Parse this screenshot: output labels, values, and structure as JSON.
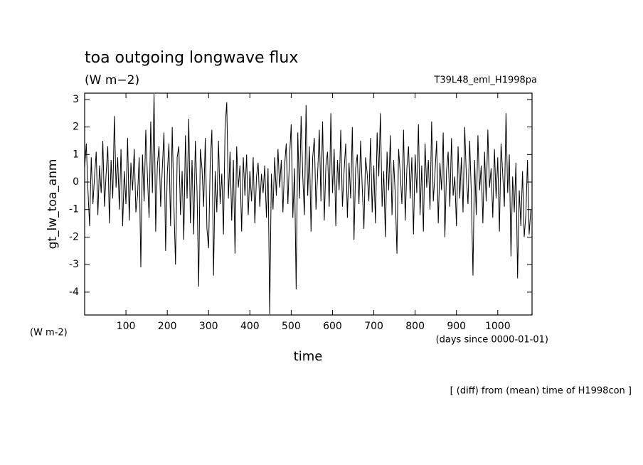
{
  "chart_data": {
    "type": "line",
    "title": "toa outgoing longwave flux",
    "subtitle": "(W m−2)",
    "annotation": "T39L48_eml_H1998pa",
    "y_label": "gt_lw_toa_anm",
    "y_unit": "(W m-2)",
    "x_unit": "(days since 0000-01-01)",
    "x_label": "time",
    "footnote": "[ (diff) from (mean) time of H1998con ]",
    "xlim": [
      0,
      1083
    ],
    "ylim": [
      -4.83,
      3.23
    ],
    "xticks": [
      100,
      200,
      300,
      400,
      500,
      600,
      700,
      800,
      900,
      1000
    ],
    "yticks": [
      -4,
      -3,
      -2,
      -1,
      0,
      1,
      2,
      3
    ],
    "x": [
      0,
      4,
      8,
      12,
      16,
      20,
      24,
      28,
      32,
      36,
      40,
      44,
      48,
      52,
      56,
      60,
      64,
      68,
      72,
      76,
      80,
      84,
      88,
      92,
      96,
      100,
      104,
      108,
      112,
      116,
      120,
      124,
      128,
      132,
      136,
      140,
      144,
      148,
      152,
      156,
      160,
      164,
      168,
      172,
      176,
      180,
      184,
      188,
      192,
      196,
      200,
      204,
      208,
      212,
      216,
      220,
      224,
      228,
      232,
      236,
      240,
      244,
      248,
      252,
      256,
      260,
      264,
      268,
      272,
      276,
      280,
      284,
      288,
      292,
      296,
      300,
      304,
      308,
      312,
      316,
      320,
      324,
      328,
      332,
      336,
      340,
      344,
      348,
      352,
      356,
      360,
      364,
      368,
      372,
      376,
      380,
      384,
      388,
      392,
      396,
      400,
      404,
      408,
      412,
      416,
      420,
      424,
      428,
      432,
      436,
      440,
      444,
      448,
      452,
      456,
      460,
      464,
      468,
      472,
      476,
      480,
      484,
      488,
      492,
      496,
      500,
      504,
      508,
      512,
      516,
      520,
      524,
      528,
      532,
      536,
      540,
      544,
      548,
      552,
      556,
      560,
      564,
      568,
      572,
      576,
      580,
      584,
      588,
      592,
      596,
      600,
      604,
      608,
      612,
      616,
      620,
      624,
      628,
      632,
      636,
      640,
      644,
      648,
      652,
      656,
      660,
      664,
      668,
      672,
      676,
      680,
      684,
      688,
      692,
      696,
      700,
      704,
      708,
      712,
      716,
      720,
      724,
      728,
      732,
      736,
      740,
      744,
      748,
      752,
      756,
      760,
      764,
      768,
      772,
      776,
      780,
      784,
      788,
      792,
      796,
      800,
      804,
      808,
      812,
      816,
      820,
      824,
      828,
      832,
      836,
      840,
      844,
      848,
      852,
      856,
      860,
      864,
      868,
      872,
      876,
      880,
      884,
      888,
      892,
      896,
      900,
      904,
      908,
      912,
      916,
      920,
      924,
      928,
      932,
      936,
      940,
      944,
      948,
      952,
      956,
      960,
      964,
      968,
      972,
      976,
      980,
      984,
      988,
      992,
      996,
      1000,
      1004,
      1008,
      1012,
      1016,
      1020,
      1024,
      1028,
      1032,
      1036,
      1040,
      1044,
      1048,
      1052,
      1056,
      1060,
      1064,
      1068,
      1072,
      1076,
      1080
    ],
    "series": [
      {
        "name": "gt_lw_toa_anm",
        "color": "#000000",
        "values": [
          0.5,
          1.4,
          -0.3,
          -1.6,
          0.9,
          -0.8,
          0.2,
          1.1,
          -1.2,
          0.6,
          -0.4,
          1.5,
          -0.9,
          0.3,
          1.3,
          -1.5,
          0.8,
          -0.6,
          2.4,
          -0.2,
          0.9,
          -1.0,
          1.2,
          -1.6,
          0.4,
          -0.8,
          1.6,
          -1.4,
          0.7,
          -0.3,
          1.2,
          -1.1,
          -0.5,
          0.9,
          -3.1,
          1.0,
          -0.7,
          1.9,
          0.2,
          -1.3,
          2.2,
          -0.4,
          3.2,
          -1.8,
          0.6,
          1.3,
          -0.9,
          0.5,
          1.8,
          -2.5,
          0.3,
          1.4,
          -1.6,
          2.0,
          -0.8,
          -3.0,
          0.9,
          1.3,
          -1.2,
          0.4,
          -2.1,
          1.7,
          -0.6,
          2.3,
          -1.5,
          0.8,
          -1.9,
          1.5,
          -0.3,
          -3.8,
          1.2,
          0.5,
          -0.9,
          1.6,
          -1.7,
          -2.4,
          0.7,
          1.9,
          -3.4,
          0.4,
          -1.1,
          1.5,
          -0.8,
          0.3,
          -1.9,
          2.0,
          2.9,
          -0.6,
          1.1,
          -1.4,
          0.8,
          -2.6,
          1.3,
          -0.2,
          0.6,
          -1.8,
          0.9,
          -0.5,
          1.0,
          -1.2,
          0.4,
          -0.7,
          0.9,
          -1.5,
          0.2,
          0.7,
          -0.9,
          0.3,
          -0.4,
          0.6,
          -1.3,
          0.5,
          -4.8,
          0.3,
          -1.0,
          0.9,
          -0.5,
          1.2,
          -0.2,
          0.8,
          -1.1,
          0.6,
          1.4,
          -0.8,
          0.9,
          2.1,
          -1.3,
          0.5,
          -3.9,
          1.8,
          -0.6,
          2.4,
          0.2,
          -1.2,
          2.8,
          -0.5,
          1.3,
          -1.8,
          0.9,
          1.6,
          -1.0,
          0.3,
          1.9,
          -0.7,
          2.2,
          -1.4,
          0.6,
          1.1,
          -0.9,
          2.5,
          -0.4,
          1.2,
          -1.6,
          0.8,
          -0.3,
          1.9,
          -0.9,
          0.4,
          1.4,
          -1.3,
          0.7,
          -0.6,
          2.0,
          -2.1,
          0.5,
          1.0,
          -0.8,
          1.5,
          -0.2,
          -1.7,
          0.9,
          0.3,
          -0.7,
          1.6,
          -1.1,
          0.6,
          -1.5,
          1.8,
          0.2,
          2.5,
          -0.9,
          0.4,
          -2.0,
          1.1,
          -0.3,
          1.7,
          -1.2,
          0.8,
          -0.5,
          -2.6,
          1.2,
          0.3,
          -0.8,
          1.9,
          -1.4,
          0.5,
          1.3,
          -0.6,
          0.9,
          -1.9,
          1.0,
          -0.4,
          2.1,
          -1.2,
          0.6,
          -1.8,
          1.4,
          -0.2,
          0.8,
          -1.0,
          2.2,
          -0.7,
          0.3,
          1.5,
          -1.5,
          0.7,
          -0.3,
          1.8,
          -2.0,
          0.4,
          1.1,
          -0.9,
          1.6,
          -0.5,
          0.2,
          -1.6,
          1.3,
          -0.6,
          0.9,
          -1.1,
          2.0,
          0.2,
          -0.8,
          1.5,
          -0.4,
          -3.4,
          0.8,
          -1.2,
          1.7,
          -0.3,
          0.6,
          -1.5,
          1.1,
          -0.7,
          1.9,
          -0.2,
          0.5,
          -1.3,
          1.2,
          -0.6,
          0.9,
          -1.8,
          1.4,
          0.3,
          -0.9,
          2.5,
          -0.4,
          1.0,
          -2.7,
          0.2,
          -1.1,
          0.7,
          -3.5,
          -0.3,
          -1.6,
          0.4,
          -2.0,
          -1.2,
          0.8,
          -1.9,
          -1.0
        ]
      }
    ]
  }
}
